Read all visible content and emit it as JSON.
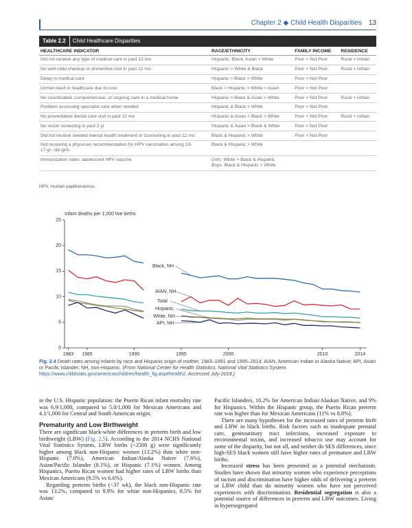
{
  "header": {
    "chapter": "Chapter 2",
    "title": "Child Health Disparities",
    "page": "13"
  },
  "table": {
    "label": "Table 2.2",
    "title": "Child Healthcare Disparities",
    "columns": [
      "HEALTHCARE INDICATOR",
      "RACE/ETHNICITY",
      "FAMILY INCOME",
      "RESIDENCE"
    ],
    "rows": [
      [
        "Did not receive any type of medical care in past 12 mo",
        [
          "Hispanic, Black, Asian > White"
        ],
        "Poor > Not Poor",
        "Rural > Urban"
      ],
      [
        "No well-child checkup or preventive visit in past 12 mo",
        [
          "Hispanic > White & Black"
        ],
        "Poor > Not Poor",
        "Rural > Urban"
      ],
      [
        "Delay in medical care",
        [
          "Hispanic > Black > White"
        ],
        "Poor > Not Poor",
        null
      ],
      [
        "Unmet need in healthcare due to cost",
        [
          "Black > Hispanic > White > Asian"
        ],
        "Poor > Not Poor",
        null
      ],
      [
        "No coordinated, comprehensive, or ongoing care in a medical home",
        [
          "Hispanic > Black & Asian > White"
        ],
        "Poor > Not Poor",
        "Rural > Urban"
      ],
      [
        "Problem accessing specialist care when needed",
        [
          "Hispanic & Black > White"
        ],
        "Poor > Not Poor",
        null
      ],
      [
        "No preventative dental care visit in past 12 mo",
        [
          "Hispanic & Asian > Black > White"
        ],
        "Poor > Not Poor",
        "Rural > Urban"
      ],
      [
        "No vision screening in past 2 yr",
        [
          "Hispanic & Asian > Black & White"
        ],
        "Poor > Not Poor",
        null
      ],
      [
        "Did not receive needed mental health treatment or counseling in past 12 mo",
        [
          "Black & Hispanic > White"
        ],
        "Poor > Not Poor",
        null
      ],
      [
        "Not receiving a physician recommendation for HPV vaccination among 13-17-yr- old girls",
        [
          "Black & Hispanic > White"
        ],
        null,
        null
      ],
      [
        "Immunization rates: adolescent HPV vaccine",
        [
          "Girls: White > Black & Hispanic",
          "Boys: Black & Hispanic > White"
        ],
        null,
        null
      ]
    ],
    "footnote": "HPV, Human papillomavirus."
  },
  "chart_data": {
    "type": "line",
    "y_label": "Infant deaths per 1,000 live births",
    "x": [
      1983,
      1984,
      1985,
      1986,
      1987,
      1988,
      1989,
      1990,
      1991,
      1992,
      1993,
      1994,
      1995,
      1996,
      1997,
      1998,
      1999,
      2000,
      2001,
      2002,
      2003,
      2004,
      2005,
      2006,
      2007,
      2008,
      2009,
      2010,
      2011,
      2012,
      2013,
      2014
    ],
    "xlim": [
      1982.6,
      2014.7
    ],
    "xticks": [
      1983,
      1985,
      1990,
      1995,
      2000,
      2010,
      2014
    ],
    "ylim": [
      0,
      25
    ],
    "yticks": [
      0,
      5,
      10,
      15,
      20,
      25
    ],
    "grid": false,
    "series": [
      {
        "name": "Black, NH",
        "color": "#2b6cb0",
        "values": [
          19.2,
          18.2,
          18.2,
          18.0,
          17.6,
          17.7,
          18.0,
          16.9,
          16.6,
          null,
          null,
          null,
          14.6,
          14.2,
          13.7,
          13.9,
          14.1,
          13.5,
          13.5,
          13.9,
          13.6,
          13.6,
          13.6,
          13.4,
          13.2,
          12.7,
          12.4,
          11.5,
          11.5,
          11.2,
          11.1,
          10.9
        ]
      },
      {
        "name": "AIAN, NH",
        "color": "#d32f2f",
        "values": [
          15.2,
          13.8,
          13.5,
          13.9,
          13.1,
          12.8,
          13.3,
          13.1,
          11.3,
          null,
          null,
          null,
          9.0,
          10.0,
          8.8,
          9.3,
          9.3,
          8.3,
          9.7,
          8.6,
          8.7,
          8.5,
          8.1,
          8.3,
          9.2,
          8.4,
          8.5,
          8.3,
          8.2,
          8.4,
          7.6,
          7.6
        ]
      },
      {
        "name": "Total",
        "color": "#2fa3a8",
        "values": [
          10.9,
          10.4,
          10.4,
          10.1,
          9.9,
          9.7,
          9.5,
          9.0,
          8.8,
          null,
          null,
          null,
          7.6,
          7.3,
          7.2,
          7.2,
          7.1,
          6.9,
          6.8,
          7.0,
          6.8,
          6.8,
          6.9,
          6.7,
          6.8,
          6.6,
          6.4,
          6.1,
          6.1,
          6.0,
          6.0,
          5.8
        ]
      },
      {
        "name": "Hispanic",
        "color": "#9a9a9a",
        "values": [
          9.5,
          9.2,
          8.8,
          8.4,
          8.2,
          8.2,
          8.1,
          7.6,
          7.2,
          null,
          null,
          null,
          6.3,
          6.1,
          6.0,
          5.8,
          5.7,
          5.6,
          5.4,
          5.6,
          5.6,
          5.6,
          5.6,
          5.4,
          5.6,
          5.4,
          5.3,
          5.1,
          5.1,
          5.0,
          5.0,
          5.0
        ]
      },
      {
        "name": "White, NH",
        "color": "#8c8a3c",
        "values": [
          9.3,
          8.8,
          8.6,
          8.3,
          8.1,
          7.8,
          7.6,
          7.3,
          7.1,
          null,
          null,
          null,
          6.3,
          6.0,
          6.0,
          5.9,
          5.8,
          5.7,
          5.7,
          5.8,
          5.7,
          5.7,
          5.7,
          5.6,
          5.6,
          5.5,
          5.3,
          5.2,
          5.1,
          5.1,
          5.1,
          4.9
        ]
      },
      {
        "name": "API, NH",
        "color": "#1f2a6e",
        "values": [
          8.3,
          8.9,
          7.8,
          7.9,
          7.3,
          6.8,
          7.4,
          6.6,
          5.8,
          null,
          null,
          null,
          5.3,
          5.2,
          5.0,
          5.5,
          4.8,
          4.9,
          4.7,
          4.8,
          4.8,
          4.7,
          4.9,
          4.5,
          4.8,
          4.4,
          4.4,
          4.3,
          4.3,
          4.1,
          4.0,
          3.9
        ]
      }
    ]
  },
  "caption": {
    "label": "Fig. 2.4",
    "text": "Death rates among infants by race and Hispanic origin of mother, 1983–1991 and 1995–2014. AIAN, American Indian or Alaska Native; API, Asian or Pacific Islander; NH, non-Hispanic.",
    "source": "(From National Center for Health Statistics, National Vital Statistics System.",
    "url": "https://www.childstats.gov/americaschildren/health_fig.asp#health2",
    "accessed": ". Accessed July 2018.)"
  },
  "body": {
    "left": {
      "p1": "in the U.S. Hispanic population: the Puerto Rican infant mortality rate was 6.9/1,000, compared to 5.0/1,000 for Mexican Americans and 4.1/1,000 for Central and South American origin.",
      "heading": "Prematurity and Low Birthweight",
      "p2": [
        "There are significant black-white differences in preterm birth and low birthweight (LBW) (",
        "Fig. 2.5",
        "). According to the 2014 NCHS National Vital Statistics System, LBW births (<2500 g) were significantly higher among black non-Hispanic women (13.2%) than white non-Hispanic (7.0%), American Indian/Alaska Native (7.6%), Asian/Pacific Islander (8.1%), or Hispanic (7.1%) women. Among Hispanics, Puerto Rican women had higher rates of LBW births than Mexican Americans (9.5% vs 6.6%)."
      ],
      "p3": "Regarding preterm births (<37 wk), the black non-Hispanic rate was 13.2%, compared to 8.9% for white non-Hispanics, 8.5% for Asian/"
    },
    "right": {
      "p1": "Pacific Islanders, 10.2% for American Indian/Alaskan Native, and 9% for Hispanics. Within the Hispanic group, the Puerto Rican preterm rate was higher than for Mexican Americans (11% vs 8.8%).",
      "p2": "There are many hypotheses for the increased rates of preterm birth and LBW in black births. Risk factors such as inadequate prenatal care, genitourinary tract infections, increased exposure to environmental toxins, and increased tobacco use may account for some of the disparity, but not all, and neither do SES differences, since high-SES black women still have higher rates of premature and LBW births.",
      "p3": [
        "Increased ",
        "stress",
        " has been presented as a potential mechanism. Studies have shown that minority women who experience perceptions of racism and discrimination have higher odds of delivering a preterm or LBW child than do minority women who have not perceived experiences with discrimination. ",
        "Residential segregation",
        " is also a potential source of differences in preterm and LBW outcomes. Living in hypersegregated"
      ]
    }
  }
}
